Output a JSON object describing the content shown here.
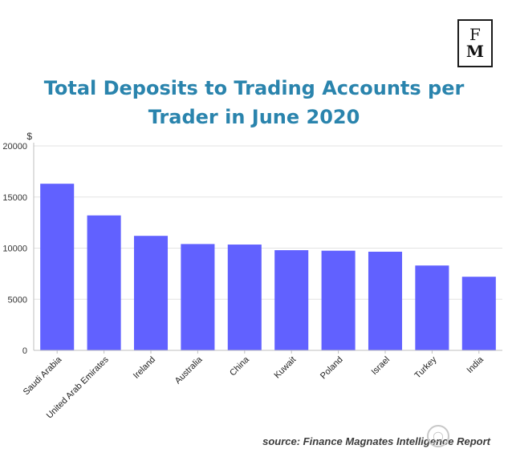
{
  "logo": {
    "line1": "F",
    "line2": "M"
  },
  "header": {
    "title_line1": "Total Deposits to Trading Accounts per",
    "title_line2": "Trader in June 2020"
  },
  "footer": {
    "source": "source: Finance Magnates Intelligence Report"
  },
  "colors": {
    "bar": "#6161ff",
    "title": "#2a84ad",
    "grid": "#e3e3e3",
    "axis": "#bfbfbf"
  },
  "chart_data": {
    "type": "bar",
    "title": "Total Deposits to Trading Accounts per Trader in June 2020",
    "ylabel": "$",
    "xlabel": "",
    "ylim": [
      0,
      20000
    ],
    "yticks": [
      0,
      5000,
      10000,
      15000,
      20000
    ],
    "grid": true,
    "legend": "none",
    "categories": [
      "Saudi Arabia",
      "United Arab Emirates",
      "Ireland",
      "Australia",
      "China",
      "Kuwait",
      "Poland",
      "Israel",
      "Turkey",
      "India"
    ],
    "values": [
      16300,
      13200,
      11200,
      10400,
      10350,
      9800,
      9750,
      9650,
      8300,
      7200
    ]
  }
}
